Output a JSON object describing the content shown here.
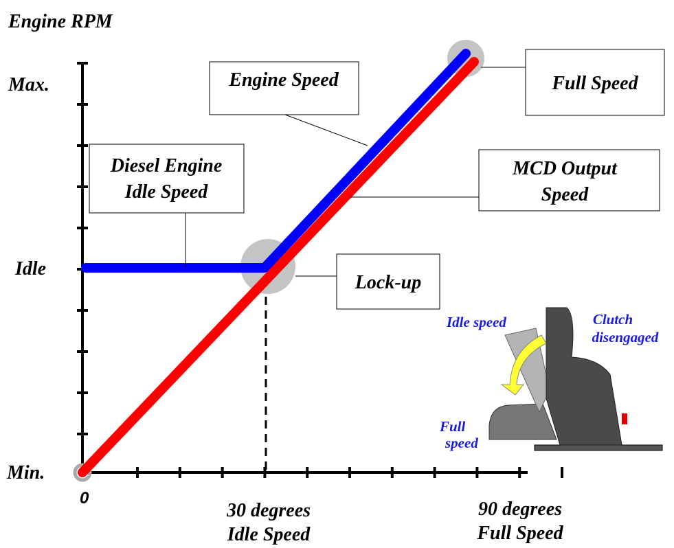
{
  "y_axis": {
    "title": "Engine RPM",
    "labels": [
      "Max.",
      "Idle",
      "Min."
    ]
  },
  "x_axis": {
    "origin": "0",
    "labels": [
      [
        "30 degrees",
        "Idle Speed"
      ],
      [
        "90 degrees",
        "Full Speed"
      ]
    ]
  },
  "callouts": {
    "engine_speed": "Engine Speed",
    "full_speed": "Full Speed",
    "idle_speed": [
      "Diesel Engine",
      "Idle Speed"
    ],
    "mcd_output": [
      "MCD Output",
      "Speed"
    ],
    "lock_up": "Lock-up"
  },
  "pedal": {
    "idle": "Idle speed",
    "clutch": [
      "Clutch",
      "disengaged"
    ],
    "full": [
      "Full",
      "speed"
    ]
  }
}
